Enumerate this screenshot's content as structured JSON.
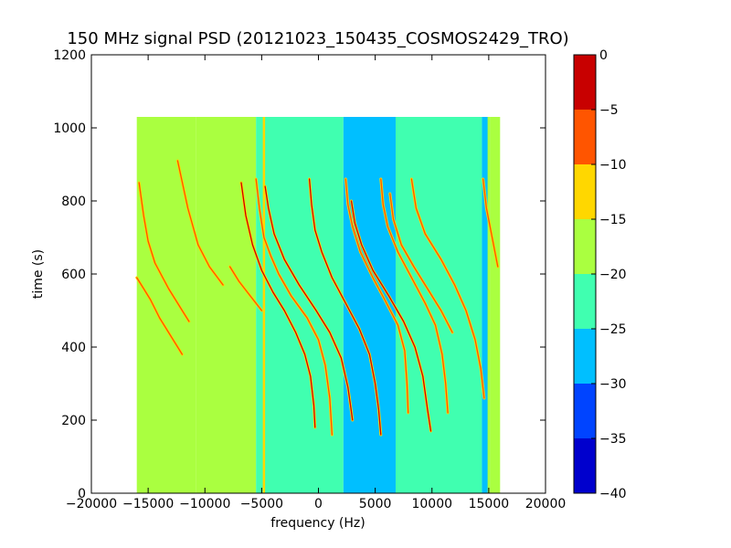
{
  "chart_data": {
    "type": "heatmap",
    "title": "150 MHz signal PSD (20121023_150435_COSMOS2429_TRO)",
    "xlabel": "frequency (Hz)",
    "ylabel": "time (s)",
    "xlim": [
      -20000,
      20000
    ],
    "ylim": [
      0,
      1200
    ],
    "x_ticks": [
      -20000,
      -15000,
      -10000,
      -5000,
      0,
      5000,
      10000,
      15000,
      20000
    ],
    "y_ticks": [
      0,
      200,
      400,
      600,
      800,
      1000,
      1200
    ],
    "x_tick_labels": [
      "−20000",
      "−15000",
      "−10000",
      "−5000",
      "0",
      "5000",
      "10000",
      "15000",
      "20000"
    ],
    "y_tick_labels": [
      "0",
      "200",
      "400",
      "600",
      "800",
      "1000",
      "1200"
    ],
    "data_extent": {
      "freq": [
        -16000,
        16000
      ],
      "time": [
        0,
        1030
      ]
    },
    "colorbar": {
      "levels": [
        -40,
        -35,
        -30,
        -25,
        -20,
        -15,
        -10,
        -5,
        0
      ],
      "tick_labels": [
        "−40",
        "−35",
        "−30",
        "−25",
        "−20",
        "−15",
        "−10",
        "−5",
        "0"
      ],
      "colors": [
        "#0000cd",
        "#0044ff",
        "#00bfff",
        "#40ffb0",
        "#aaff40",
        "#ffd700",
        "#ff5500",
        "#c80000"
      ]
    },
    "background_bands": [
      {
        "x0": -16000,
        "x1": -10800,
        "value": -20
      },
      {
        "x0": -10800,
        "x1": -5500,
        "value": -17
      },
      {
        "x0": -5500,
        "x1": 2200,
        "value": -22
      },
      {
        "x0": 2200,
        "x1": 6800,
        "value": -27
      },
      {
        "x0": 6800,
        "x1": 14400,
        "value": -22
      },
      {
        "x0": 14400,
        "x1": 15100,
        "value": -26
      },
      {
        "x0": 15100,
        "x1": 16000,
        "value": -19
      }
    ],
    "signal_traces": [
      {
        "name": "",
        "peak": -8,
        "points": [
          [
            -16000,
            590
          ],
          [
            -15400,
            560
          ],
          [
            -14800,
            530
          ],
          [
            -14000,
            480
          ],
          [
            -13000,
            430
          ],
          [
            -12000,
            380
          ]
        ]
      },
      {
        "name": "",
        "peak": -8,
        "points": [
          [
            -15800,
            850
          ],
          [
            -15400,
            760
          ],
          [
            -15000,
            690
          ],
          [
            -14400,
            630
          ],
          [
            -13200,
            560
          ],
          [
            -12000,
            500
          ],
          [
            -11400,
            470
          ]
        ]
      },
      {
        "name": "",
        "peak": -8,
        "points": [
          [
            -12400,
            910
          ],
          [
            -11500,
            780
          ],
          [
            -10600,
            680
          ],
          [
            -9600,
            620
          ],
          [
            -8400,
            570
          ]
        ]
      },
      {
        "name": "",
        "peak": -8,
        "points": [
          [
            -7800,
            620
          ],
          [
            -7000,
            580
          ],
          [
            -6000,
            540
          ],
          [
            -5000,
            500
          ]
        ]
      },
      {
        "name": "",
        "peak": -5,
        "points": [
          [
            -6800,
            850
          ],
          [
            -6400,
            760
          ],
          [
            -5800,
            680
          ],
          [
            -5000,
            610
          ],
          [
            -4000,
            550
          ],
          [
            -3000,
            500
          ],
          [
            -2000,
            440
          ],
          [
            -1200,
            380
          ],
          [
            -700,
            320
          ],
          [
            -400,
            240
          ],
          [
            -300,
            180
          ]
        ]
      },
      {
        "name": "",
        "peak": -6,
        "points": [
          [
            -5500,
            860
          ],
          [
            -5200,
            780
          ],
          [
            -4800,
            700
          ],
          [
            -4200,
            650
          ],
          [
            -3500,
            600
          ],
          [
            -2400,
            540
          ],
          [
            -1000,
            480
          ],
          [
            0,
            420
          ],
          [
            600,
            350
          ],
          [
            1000,
            260
          ],
          [
            1200,
            160
          ]
        ]
      },
      {
        "name": "",
        "peak": -5,
        "points": [
          [
            -4700,
            840
          ],
          [
            -4400,
            780
          ],
          [
            -3900,
            710
          ],
          [
            -3000,
            640
          ],
          [
            -1700,
            570
          ],
          [
            -200,
            500
          ],
          [
            1000,
            440
          ],
          [
            2000,
            370
          ],
          [
            2600,
            290
          ],
          [
            3000,
            200
          ]
        ]
      },
      {
        "name": "",
        "peak": -3,
        "points": [
          [
            -800,
            860
          ],
          [
            -600,
            790
          ],
          [
            -300,
            720
          ],
          [
            300,
            660
          ],
          [
            1200,
            590
          ],
          [
            2400,
            520
          ],
          [
            3600,
            450
          ],
          [
            4500,
            380
          ],
          [
            5000,
            300
          ],
          [
            5300,
            230
          ],
          [
            5500,
            160
          ]
        ]
      },
      {
        "name": "",
        "peak": -6,
        "points": [
          [
            2400,
            860
          ],
          [
            2600,
            790
          ],
          [
            3000,
            730
          ],
          [
            3700,
            660
          ],
          [
            4800,
            590
          ],
          [
            6000,
            520
          ],
          [
            7000,
            460
          ],
          [
            7600,
            390
          ],
          [
            7800,
            300
          ],
          [
            7900,
            220
          ]
        ]
      },
      {
        "name": "",
        "peak": -5,
        "points": [
          [
            2900,
            800
          ],
          [
            3200,
            740
          ],
          [
            3800,
            680
          ],
          [
            4800,
            610
          ],
          [
            6200,
            540
          ],
          [
            7500,
            470
          ],
          [
            8500,
            400
          ],
          [
            9200,
            320
          ],
          [
            9600,
            230
          ],
          [
            9900,
            170
          ]
        ]
      },
      {
        "name": "",
        "peak": -6,
        "points": [
          [
            5500,
            860
          ],
          [
            5700,
            790
          ],
          [
            6100,
            730
          ],
          [
            7000,
            660
          ],
          [
            8200,
            590
          ],
          [
            9400,
            520
          ],
          [
            10300,
            460
          ],
          [
            10900,
            380
          ],
          [
            11200,
            300
          ],
          [
            11400,
            220
          ]
        ]
      },
      {
        "name": "",
        "peak": -6,
        "points": [
          [
            6300,
            820
          ],
          [
            6600,
            750
          ],
          [
            7300,
            680
          ],
          [
            8400,
            620
          ],
          [
            9600,
            560
          ],
          [
            10800,
            500
          ],
          [
            11800,
            440
          ]
        ]
      },
      {
        "name": "",
        "peak": -8,
        "points": [
          [
            8200,
            860
          ],
          [
            8600,
            780
          ],
          [
            9400,
            710
          ],
          [
            10800,
            640
          ],
          [
            12000,
            570
          ],
          [
            13000,
            500
          ],
          [
            13800,
            420
          ],
          [
            14300,
            340
          ],
          [
            14600,
            260
          ]
        ]
      },
      {
        "name": "",
        "peak": -9,
        "points": [
          [
            14500,
            860
          ],
          [
            14800,
            780
          ],
          [
            15300,
            700
          ],
          [
            15800,
            620
          ]
        ]
      }
    ],
    "vertical_lines": [
      {
        "x": -4800,
        "t0": 0,
        "t1": 1030,
        "value": -15
      },
      {
        "x": 15000,
        "t0": 0,
        "t1": 1030,
        "value": -16
      }
    ]
  }
}
